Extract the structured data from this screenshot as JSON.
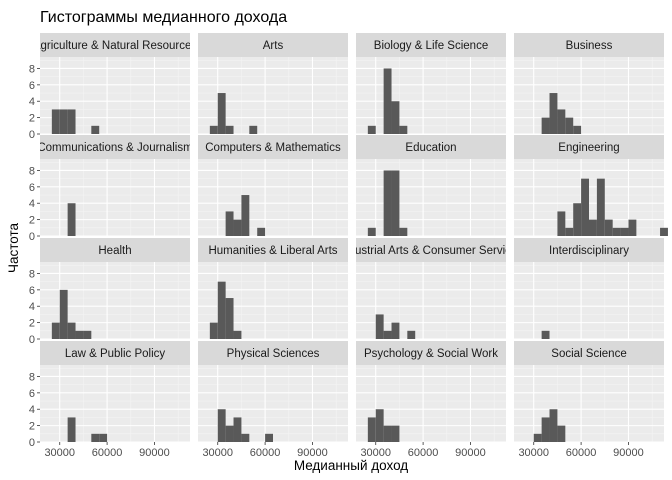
{
  "chart_data": {
    "type": "bar",
    "title": "Гистограммы медианного дохода",
    "xlabel": "Медианный доход",
    "ylabel": "Частота",
    "xlim": [
      17500,
      112500
    ],
    "ylim": [
      0,
      9.4
    ],
    "x_ticks": [
      30000,
      60000,
      90000
    ],
    "y_ticks": [
      0,
      2,
      4,
      6,
      8
    ],
    "bin_width": 5000,
    "grid": true,
    "facets": [
      {
        "name": "Agriculture & Natural Resources",
        "bins": [
          [
            25000,
            3
          ],
          [
            30000,
            3
          ],
          [
            35000,
            3
          ],
          [
            50000,
            1
          ]
        ]
      },
      {
        "name": "Arts",
        "bins": [
          [
            25000,
            1
          ],
          [
            30000,
            5
          ],
          [
            35000,
            1
          ],
          [
            50000,
            1
          ]
        ]
      },
      {
        "name": "Biology & Life Science",
        "bins": [
          [
            25000,
            1
          ],
          [
            35000,
            8
          ],
          [
            40000,
            4
          ],
          [
            45000,
            1
          ]
        ]
      },
      {
        "name": "Business",
        "bins": [
          [
            35000,
            2
          ],
          [
            40000,
            5
          ],
          [
            45000,
            3
          ],
          [
            50000,
            2
          ],
          [
            55000,
            1
          ]
        ]
      },
      {
        "name": "Communications & Journalism",
        "bins": [
          [
            35000,
            4
          ]
        ]
      },
      {
        "name": "Computers & Mathematics",
        "bins": [
          [
            35000,
            3
          ],
          [
            40000,
            2
          ],
          [
            45000,
            5
          ],
          [
            55000,
            1
          ]
        ]
      },
      {
        "name": "Education",
        "bins": [
          [
            25000,
            1
          ],
          [
            35000,
            8
          ],
          [
            40000,
            8
          ],
          [
            45000,
            1
          ]
        ]
      },
      {
        "name": "Engineering",
        "bins": [
          [
            45000,
            3
          ],
          [
            50000,
            1
          ],
          [
            55000,
            4
          ],
          [
            60000,
            7
          ],
          [
            65000,
            2
          ],
          [
            70000,
            7
          ],
          [
            75000,
            2
          ],
          [
            80000,
            1
          ],
          [
            85000,
            1
          ],
          [
            90000,
            2
          ],
          [
            110000,
            1
          ]
        ]
      },
      {
        "name": "Health",
        "bins": [
          [
            25000,
            2
          ],
          [
            30000,
            6
          ],
          [
            35000,
            2
          ],
          [
            40000,
            1
          ],
          [
            45000,
            1
          ]
        ]
      },
      {
        "name": "Humanities & Liberal Arts",
        "bins": [
          [
            25000,
            2
          ],
          [
            30000,
            7
          ],
          [
            35000,
            5
          ],
          [
            40000,
            1
          ]
        ]
      },
      {
        "name": "Industrial Arts & Consumer Services",
        "bins": [
          [
            30000,
            3
          ],
          [
            35000,
            1
          ],
          [
            40000,
            2
          ],
          [
            50000,
            1
          ]
        ]
      },
      {
        "name": "Interdisciplinary",
        "bins": [
          [
            35000,
            1
          ]
        ]
      },
      {
        "name": "Law & Public Policy",
        "bins": [
          [
            35000,
            3
          ],
          [
            50000,
            1
          ],
          [
            55000,
            1
          ]
        ]
      },
      {
        "name": "Physical Sciences",
        "bins": [
          [
            30000,
            4
          ],
          [
            35000,
            2
          ],
          [
            40000,
            3
          ],
          [
            45000,
            1
          ],
          [
            60000,
            1
          ]
        ]
      },
      {
        "name": "Psychology & Social Work",
        "bins": [
          [
            25000,
            3
          ],
          [
            30000,
            4
          ],
          [
            35000,
            2
          ],
          [
            40000,
            2
          ]
        ]
      },
      {
        "name": "Social Science",
        "bins": [
          [
            30000,
            1
          ],
          [
            35000,
            3
          ],
          [
            40000,
            4
          ],
          [
            45000,
            2
          ]
        ]
      }
    ]
  },
  "colors": {
    "bar": "#595959",
    "panel_bg": "#ebebeb",
    "grid_major": "#ffffff",
    "grid_minor": "#f4f4f4",
    "strip_bg": "#d9d9d9",
    "tick_text": "#4d4d4d"
  }
}
